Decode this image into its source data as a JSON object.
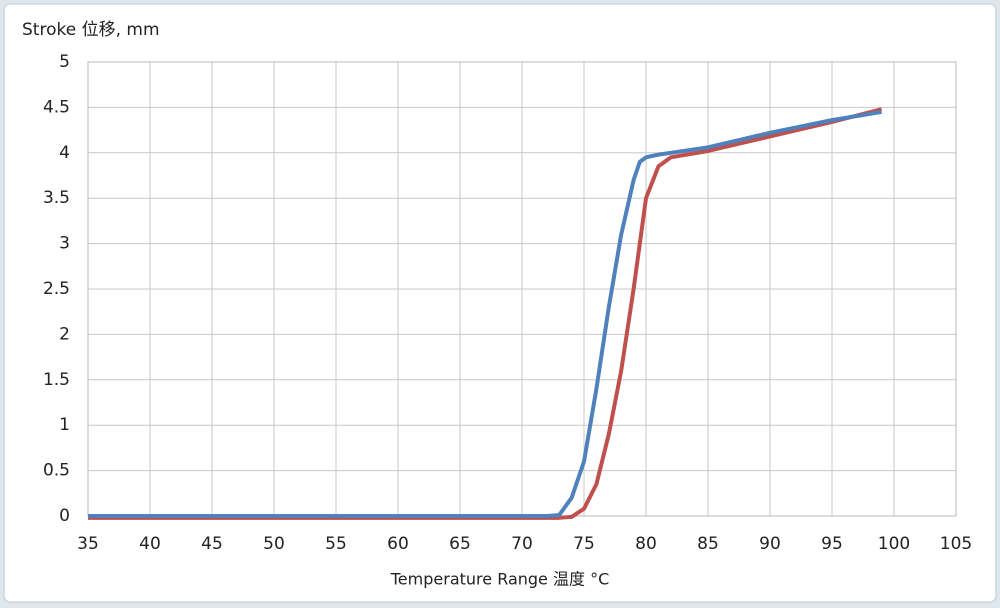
{
  "chart_data": {
    "type": "line",
    "y_label": "Stroke 位移, mm",
    "x_label": "Temperature Range  温度 °C",
    "xlim": [
      35,
      105
    ],
    "xticks": [
      35,
      40,
      45,
      50,
      55,
      60,
      65,
      70,
      75,
      80,
      85,
      90,
      95,
      100,
      105
    ],
    "ylim": [
      0,
      5
    ],
    "yticks": [
      0,
      0.5,
      1,
      1.5,
      2,
      2.5,
      3,
      3.5,
      4,
      4.5,
      5
    ],
    "grid": true,
    "series": [
      {
        "color": "#c0504d",
        "x": [
          35,
          73,
          74,
          75,
          76,
          77,
          78,
          79,
          79.5,
          80,
          81,
          82,
          85,
          90,
          95,
          99
        ],
        "values": [
          -0.02,
          -0.02,
          -0.01,
          0.08,
          0.35,
          0.9,
          1.6,
          2.5,
          3.0,
          3.5,
          3.85,
          3.95,
          4.02,
          4.18,
          4.34,
          4.48
        ]
      },
      {
        "color": "#4f81bd",
        "x": [
          35,
          72,
          73,
          74,
          75,
          76,
          77,
          78,
          79,
          79.5,
          80,
          81,
          82,
          85,
          90,
          95,
          99
        ],
        "values": [
          0,
          0,
          0.01,
          0.2,
          0.6,
          1.4,
          2.3,
          3.1,
          3.7,
          3.9,
          3.95,
          3.98,
          4.0,
          4.06,
          4.22,
          4.36,
          4.45
        ]
      }
    ]
  }
}
